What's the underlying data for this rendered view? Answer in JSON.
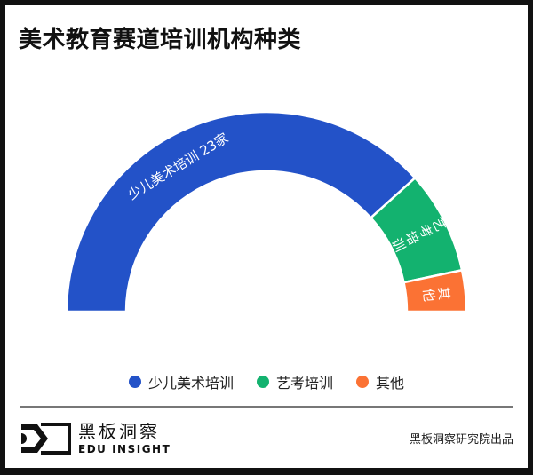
{
  "title": "美术教育赛道培训机构种类",
  "chart_data": {
    "type": "pie",
    "variant": "half-donut",
    "title": "美术教育赛道培训机构种类",
    "categories": [
      "少儿美术培训",
      "艺考培训",
      "其他"
    ],
    "values": [
      23,
      5,
      2
    ],
    "unit": "家",
    "colors": [
      "#2352c8",
      "#13b26f",
      "#fb7234"
    ],
    "labels": [
      "少儿美术培训  23家",
      "艺考培训",
      "其他"
    ],
    "legend_position": "bottom"
  },
  "legend": [
    {
      "label": "少儿美术培训",
      "color": "#2352c8"
    },
    {
      "label": "艺考培训",
      "color": "#13b26f"
    },
    {
      "label": "其他",
      "color": "#fb7234"
    }
  ],
  "footer": {
    "logo_cn": "黑板洞察",
    "logo_en": "EDU INSIGHT",
    "credit": "黑板洞察研究院出品"
  }
}
